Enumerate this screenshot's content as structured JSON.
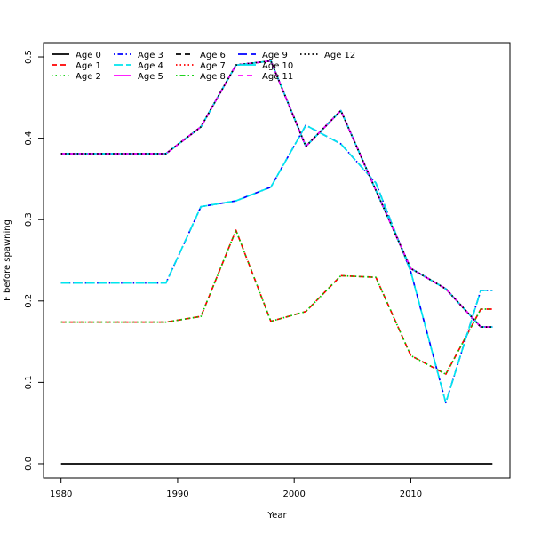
{
  "chart_data": {
    "type": "line",
    "title": "",
    "xlabel": "Year",
    "ylabel": "F before spawning",
    "xlim": [
      1978.5,
      2018.5
    ],
    "ylim": [
      -0.0175,
      0.5175
    ],
    "x_ticks": [
      "1980",
      "1990",
      "2000",
      "2010"
    ],
    "y_ticks": [
      "0.0",
      "0.1",
      "0.2",
      "0.3",
      "0.4",
      "0.5"
    ],
    "grid": false,
    "legend_position": "top-left",
    "x": [
      1980,
      1989,
      1992,
      1995,
      1998,
      2001,
      2004,
      2007,
      2010,
      2013,
      2016,
      2017
    ],
    "series": [
      {
        "name": "Age 0",
        "color": "#000000",
        "dash": "solid",
        "values": [
          0.0,
          0.0,
          0.0,
          0.0,
          0.0,
          0.0,
          0.0,
          0.0,
          0.0,
          0.0,
          0.0,
          0.0
        ]
      },
      {
        "name": "Age 1",
        "color": "#ff0000",
        "dash": "dashed",
        "values": [
          0.174,
          0.174,
          0.181,
          0.287,
          0.175,
          0.187,
          0.231,
          0.229,
          0.133,
          0.11,
          0.19,
          0.19
        ]
      },
      {
        "name": "Age 2",
        "color": "#00cd00",
        "dash": "dotted",
        "values": [
          0.174,
          0.174,
          0.181,
          0.287,
          0.175,
          0.187,
          0.231,
          0.229,
          0.133,
          0.11,
          0.19,
          0.19
        ]
      },
      {
        "name": "Age 3",
        "color": "#0000ff",
        "dash": "dotdash",
        "values": [
          0.222,
          0.222,
          0.316,
          0.323,
          0.34,
          0.416,
          0.393,
          0.345,
          0.236,
          0.075,
          0.213,
          0.213
        ]
      },
      {
        "name": "Age 4",
        "color": "#00e5ee",
        "dash": "longdash",
        "values": [
          0.222,
          0.222,
          0.316,
          0.323,
          0.34,
          0.416,
          0.393,
          0.345,
          0.236,
          0.075,
          0.213,
          0.213
        ]
      },
      {
        "name": "Age 5",
        "color": "#ff00ff",
        "dash": "solid",
        "values": [
          0.381,
          0.381,
          0.414,
          0.49,
          0.495,
          0.39,
          0.434,
          0.336,
          0.24,
          0.215,
          0.168,
          0.168
        ]
      },
      {
        "name": "Age 6",
        "color": "#000000",
        "dash": "dashed",
        "values": [
          0.381,
          0.381,
          0.414,
          0.49,
          0.495,
          0.39,
          0.434,
          0.336,
          0.24,
          0.215,
          0.168,
          0.168
        ]
      },
      {
        "name": "Age 7",
        "color": "#ff0000",
        "dash": "dotted",
        "values": [
          0.381,
          0.381,
          0.414,
          0.49,
          0.495,
          0.39,
          0.434,
          0.336,
          0.24,
          0.215,
          0.168,
          0.168
        ]
      },
      {
        "name": "Age 8",
        "color": "#00cd00",
        "dash": "dotdash",
        "values": [
          0.381,
          0.381,
          0.414,
          0.49,
          0.495,
          0.39,
          0.434,
          0.336,
          0.24,
          0.215,
          0.168,
          0.168
        ]
      },
      {
        "name": "Age 9",
        "color": "#0000ff",
        "dash": "longdash",
        "values": [
          0.381,
          0.381,
          0.414,
          0.49,
          0.495,
          0.39,
          0.434,
          0.336,
          0.24,
          0.215,
          0.168,
          0.168
        ]
      },
      {
        "name": "Age 10",
        "color": "#00e5ee",
        "dash": "solid",
        "values": [
          0.381,
          0.381,
          0.414,
          0.49,
          0.495,
          0.39,
          0.434,
          0.336,
          0.24,
          0.215,
          0.168,
          0.168
        ]
      },
      {
        "name": "Age 11",
        "color": "#ff00ff",
        "dash": "dashed",
        "values": [
          0.381,
          0.381,
          0.414,
          0.49,
          0.495,
          0.39,
          0.434,
          0.336,
          0.24,
          0.215,
          0.168,
          0.168
        ]
      },
      {
        "name": "Age 12",
        "color": "#000000",
        "dash": "dotted",
        "values": [
          0.381,
          0.381,
          0.414,
          0.49,
          0.495,
          0.39,
          0.434,
          0.336,
          0.24,
          0.215,
          0.168,
          0.168
        ]
      }
    ]
  }
}
